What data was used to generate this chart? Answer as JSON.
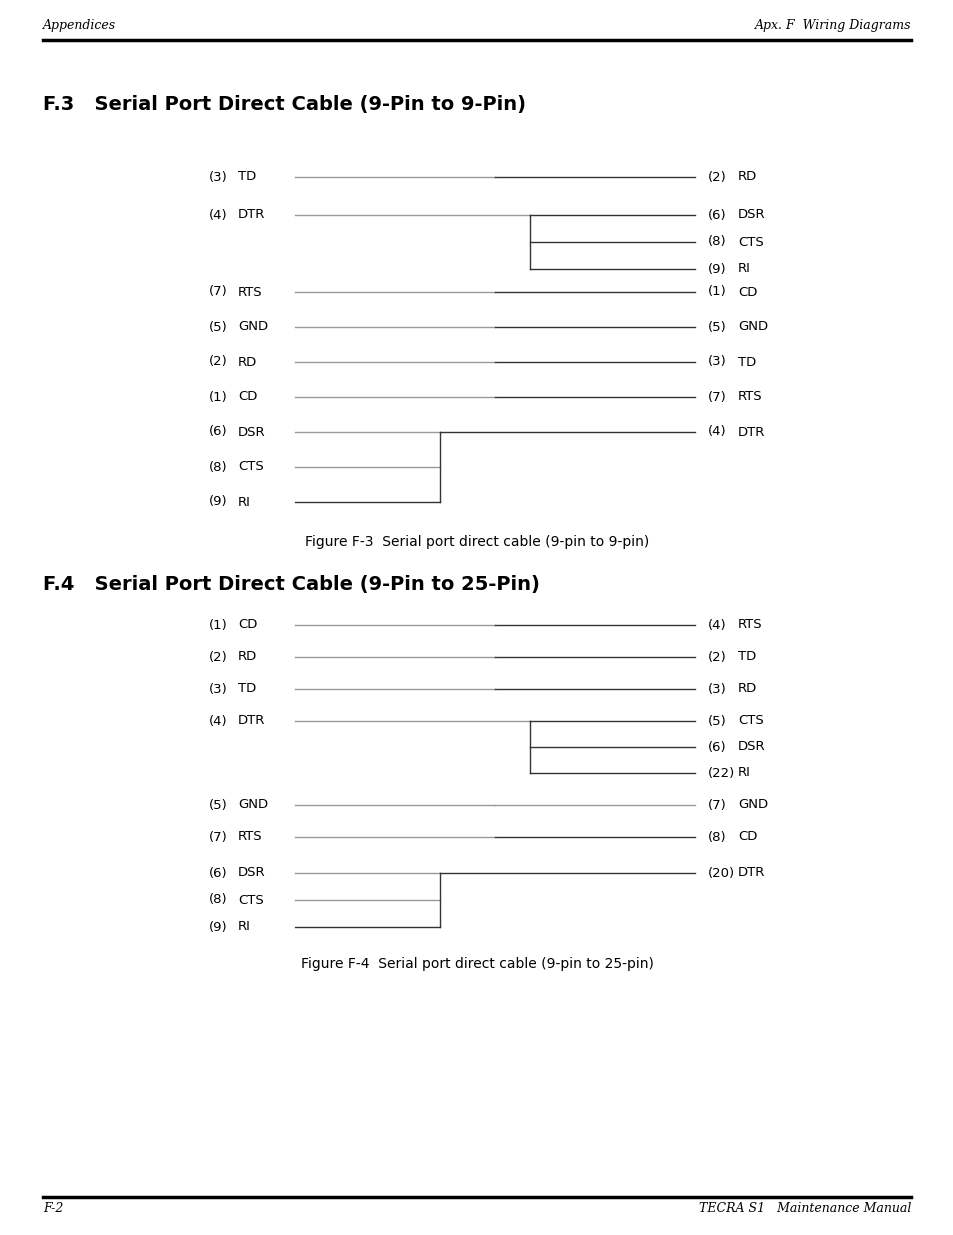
{
  "page_title_left": "Appendices",
  "page_title_right": "Apx. F  Wiring Diagrams",
  "footer_left": "F-2",
  "footer_right": "TECRA S1   Maintenance Manual",
  "section1_title": "F.3   Serial Port Direct Cable (9-Pin to 9-Pin)",
  "section1_caption": "Figure F-3  Serial port direct cable (9-pin to 9-pin)",
  "section2_title": "F.4   Serial Port Direct Cable (9-Pin to 25-Pin)",
  "section2_caption": "Figure F-4  Serial port direct cable (9-pin to 25-pin)",
  "bg_color": "#ffffff",
  "text_color": "#000000"
}
